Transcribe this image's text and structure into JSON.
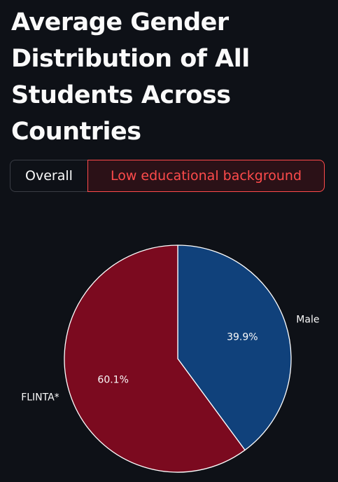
{
  "header": {
    "title": "Average Gender Distribution of All Students Across Countries"
  },
  "toggle": {
    "options": [
      {
        "label": "Overall",
        "selected": false
      },
      {
        "label": "Low educational background",
        "selected": true
      }
    ]
  },
  "colors": {
    "background": "#0e1117",
    "male": "#10417b",
    "flinta": "#7b0a1f",
    "accent": "#ff4b4b"
  },
  "chart_data": {
    "type": "pie",
    "categories": [
      "Male",
      "FLINTA*"
    ],
    "values": [
      39.9,
      60.1
    ],
    "percent_labels": [
      "39.9%",
      "60.1%"
    ],
    "start": "12 o'clock, clockwise",
    "edgecolor": "white"
  }
}
